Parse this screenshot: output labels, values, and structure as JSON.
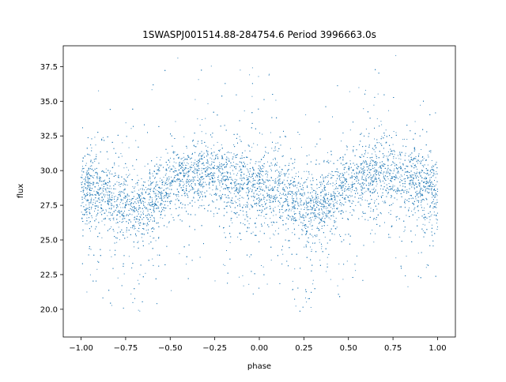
{
  "chart_data": {
    "type": "scatter",
    "title": "1SWASPJ001514.88-284754.6 Period 3996663.0s",
    "xlabel": "phase",
    "ylabel": "flux",
    "xlim": [
      -1.1,
      1.1
    ],
    "ylim": [
      18.0,
      39.0
    ],
    "x_ticks": [
      -1.0,
      -0.75,
      -0.5,
      -0.25,
      0.0,
      0.25,
      0.5,
      0.75,
      1.0
    ],
    "x_tick_labels": [
      "−1.00",
      "−0.75",
      "−0.50",
      "−0.25",
      "0.00",
      "0.25",
      "0.50",
      "0.75",
      "1.00"
    ],
    "y_ticks": [
      20.0,
      22.5,
      25.0,
      27.5,
      30.0,
      32.5,
      35.0,
      37.5
    ],
    "y_tick_labels": [
      "20.0",
      "22.5",
      "25.0",
      "27.5",
      "30.0",
      "32.5",
      "35.0",
      "37.5"
    ],
    "grid": false,
    "marker_color": "#1f77b4",
    "series": [
      {
        "x": [
          -1.0,
          -0.95,
          -0.9,
          -0.85,
          -0.8,
          -0.75,
          -0.7,
          -0.65,
          -0.6,
          -0.55,
          -0.5,
          -0.45,
          -0.4,
          -0.35,
          -0.3,
          -0.25,
          -0.2,
          -0.15,
          -0.1,
          -0.05,
          0.0,
          0.05,
          0.1,
          0.15,
          0.2,
          0.25,
          0.3,
          0.35,
          0.4,
          0.45,
          0.5,
          0.55,
          0.6,
          0.65,
          0.7,
          0.75,
          0.8,
          0.85,
          0.9,
          0.95,
          1.0
        ],
        "y": [
          28.5,
          28.8,
          28.6,
          28.2,
          27.8,
          27.6,
          27.3,
          27.6,
          27.9,
          28.4,
          29.0,
          29.4,
          29.6,
          29.8,
          29.9,
          29.8,
          29.6,
          29.3,
          29.0,
          28.7,
          28.5,
          28.8,
          28.6,
          28.2,
          27.8,
          27.6,
          27.3,
          27.6,
          27.9,
          28.4,
          29.0,
          29.4,
          29.6,
          29.8,
          29.9,
          29.8,
          29.6,
          29.3,
          29.0,
          28.7,
          28.5
        ]
      }
    ]
  }
}
